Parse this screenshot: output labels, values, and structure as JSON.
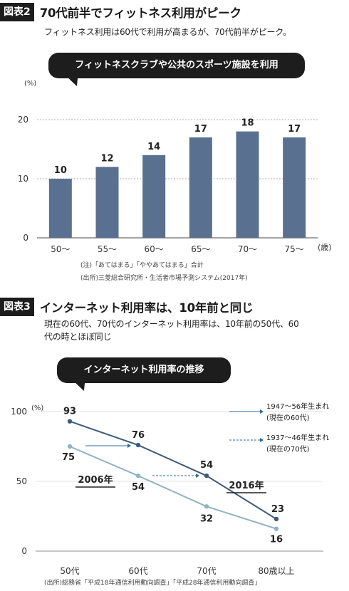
{
  "section1": {
    "badge": "図表2",
    "title": "70代前半でフィットネス利用がピーク",
    "subtitle": "フィットネス利用は60代で利用が高まるが、70代前半がピーク。",
    "bubble": "フィットネスクラブや公共のスポーツ施設を利用",
    "note1": "(注)「あてはまる」「ややあてはまる」合計",
    "note2": "(出所)三菱総合研究所・生活者市場予測システム(2017年)"
  },
  "section2": {
    "badge": "図表3",
    "title": "インターネット利用率は、10年前と同じ",
    "subtitle1": "現在の60代、70代のインターネット利用率は、10年前の50代、60",
    "subtitle2": "代の時とほぼ同じ",
    "bubble": "インターネット利用率の推移",
    "legend_2016_line1": "1947～56年生まれ",
    "legend_2016_line2": "(現在の60代)",
    "legend_2006_line1": "1937～46年生まれ",
    "legend_2006_line2": "(現在の70代)",
    "source": "(出所)総務省「平成18年通信利用動向調査」「平成28年通信利用動向調査」"
  },
  "colors": {
    "bar": "#5a7090",
    "line_2016": "#3e5a7a",
    "line_2006": "#8fb3c3",
    "arrow": "#2a6a9a",
    "grid": "#999999"
  },
  "chart_data": [
    {
      "type": "bar",
      "categories": [
        "50～",
        "55～",
        "60～",
        "65～",
        "70～",
        "75～"
      ],
      "values": [
        10,
        12,
        14,
        17,
        18,
        17
      ],
      "xlabel": "(歳)",
      "ylabel": "(%)",
      "ylim": [
        0,
        20
      ],
      "yticks": [
        0,
        10,
        20
      ]
    },
    {
      "type": "line",
      "categories": [
        "50代",
        "60代",
        "70代",
        "80歳以上"
      ],
      "series": [
        {
          "name": "2016年",
          "values": [
            93,
            76,
            54,
            23
          ]
        },
        {
          "name": "2006年",
          "values": [
            75,
            54,
            32,
            16
          ]
        }
      ],
      "ylabel": "(%)",
      "ylim": [
        0,
        100
      ],
      "yticks": [
        0,
        50,
        100
      ]
    }
  ]
}
